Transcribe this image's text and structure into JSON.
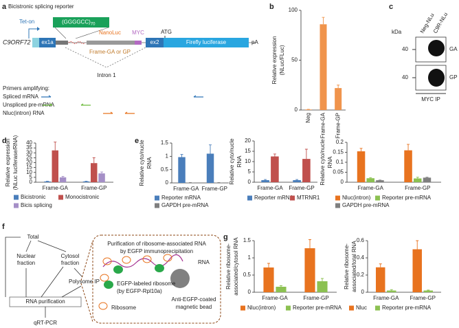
{
  "panel_labels": [
    "a",
    "b",
    "c",
    "d",
    "e",
    "f",
    "g"
  ],
  "panel_a": {
    "title": "Bicistronic splicing reporter",
    "repeat": "(GGGGCC)",
    "repeat_count": "70",
    "tet_on": "Tet-on",
    "gene": "C9ORF72",
    "exon1": "ex1a",
    "nanoluc": "NanoLuc",
    "myc": "MYC",
    "atg": "ATG",
    "frame": "Frame-GA or GP",
    "exon2": "ex2",
    "firefly": "Firefly luciferase",
    "pa": "pA",
    "intron": "Intron 1",
    "primers_title": "Primers amplifying:",
    "primers": [
      "Spliced mRNA",
      "Unspliced pre-mRNA",
      "Nluc(intron) RNA"
    ]
  },
  "panel_c": {
    "kda": "kDa",
    "markers": [
      "40",
      "40"
    ],
    "lanes": [
      "Neg-NLu",
      "C9R-NLu"
    ],
    "bands": [
      "GA",
      "GP"
    ],
    "footer": "MYC IP"
  },
  "panel_f": {
    "total": "Total",
    "nuclear": [
      "Nuclear",
      "fraction"
    ],
    "cytosol": [
      "Cytosol",
      "fraction"
    ],
    "polysome": "Polysome IP",
    "purification": "RNA purification",
    "qpcr": "qRT-PCR",
    "box_title": [
      "Purification of ribosome-associated RNA",
      "by EGFP immunoprecipitation"
    ],
    "rna": "RNA",
    "egfp": [
      "EGFP-labeled ribosome",
      "(by EGFP-Rpl10a)"
    ],
    "ribosome": "Ribosome",
    "bead": [
      "Anti-EGFP-coated",
      "magnetic bead"
    ]
  },
  "chart_data": [
    {
      "type": "bar",
      "ylabel": [
        "Relative expression",
        "(NLuc/FLuc)"
      ],
      "categories": [
        "Neg",
        "Frame-GA",
        "Frame-GP"
      ],
      "values": [
        0.5,
        86,
        22
      ],
      "errors": [
        0.2,
        7,
        3
      ],
      "color": "#f0944c",
      "ylim": [
        0,
        100
      ],
      "yticks": [
        0,
        50,
        100
      ]
    },
    {
      "type": "bar",
      "ylabel": [
        "Relative expression",
        "(NLuc luciferase/RNA)"
      ],
      "categories": [
        "Frame-GA",
        "Frame-GP"
      ],
      "ylim": [
        0,
        40
      ],
      "yticks": [
        0,
        5,
        10,
        15,
        20,
        25,
        30,
        35,
        40
      ],
      "series": [
        {
          "name": "Bicistronic",
          "color": "#4a7ebb",
          "values": [
            0.8,
            0.8
          ],
          "errors": [
            0.3,
            0.3
          ]
        },
        {
          "name": "Monocistronic",
          "color": "#c0504d",
          "values": [
            32.5,
            19.5
          ],
          "errors": [
            8.5,
            5.5
          ]
        },
        {
          "name": "Bicis splicing",
          "color": "#a58fc7",
          "values": [
            5,
            9
          ],
          "errors": [
            1,
            1.5
          ]
        }
      ]
    },
    {
      "type": "bar",
      "ylabel": [
        "Relative cyto/nucle",
        "RNA"
      ],
      "categories": [
        "Frame-GA",
        "Frame-GP"
      ],
      "ylim": [
        0,
        1.5
      ],
      "yticks": [
        0,
        0.5,
        1,
        1.5
      ],
      "series": [
        {
          "name": "Reporter mRNA",
          "color": "#4a7ebb",
          "values": [
            0.97,
            1.1
          ],
          "errors": [
            0.1,
            0.33
          ]
        },
        {
          "name": "GAPDH pre-mRNA",
          "color": "#7f7f7f",
          "values": [
            0.01,
            0.01
          ],
          "errors": [
            0.005,
            0.005
          ]
        }
      ]
    },
    {
      "type": "bar",
      "ylabel": [
        "Relative cyto/nucle",
        "RNA"
      ],
      "categories": [
        "Frame-GA",
        "Frame-GP"
      ],
      "ylim": [
        0,
        20
      ],
      "yticks": [
        0,
        5,
        10,
        15,
        20
      ],
      "series": [
        {
          "name": "Reporter mRNA",
          "color": "#4a7ebb",
          "values": [
            1,
            1
          ],
          "errors": [
            0.3,
            0.3
          ]
        },
        {
          "name": "MTRNR1",
          "color": "#c0504d",
          "values": [
            12.5,
            11.3
          ],
          "errors": [
            1.2,
            4.7
          ]
        }
      ]
    },
    {
      "type": "bar",
      "ylabel": [
        "Relative cyto/nucle",
        "RNA"
      ],
      "categories": [
        "Frame-GA",
        "Frame-GP"
      ],
      "ylim": [
        0,
        0.2
      ],
      "yticks": [
        0,
        0.05,
        0.1,
        0.15,
        0.2
      ],
      "series": [
        {
          "name": "Nluc(intron)",
          "color": "#e8731f",
          "values": [
            0.155,
            0.16
          ],
          "errors": [
            0.015,
            0.03
          ]
        },
        {
          "name": "Reporter pre-mRNA",
          "color": "#8cc152",
          "values": [
            0.02,
            0.019
          ],
          "errors": [
            0.003,
            0.006
          ]
        },
        {
          "name": "GAPDH pre-mRNA",
          "color": "#7f7f7f",
          "values": [
            0.01,
            0.023
          ],
          "errors": [
            0.001,
            0.002
          ]
        }
      ]
    },
    {
      "type": "bar",
      "ylabel": [
        "Relative ribosome-",
        "associated/cytosol RNA"
      ],
      "categories": [
        "Frame-GA",
        "Frame-GP"
      ],
      "ylim": [
        0,
        1.5
      ],
      "yticks": [
        0,
        0.5,
        1,
        1.5
      ],
      "series": [
        {
          "name": "Nluc(intron)",
          "color": "#e8731f",
          "values": [
            0.72,
            1.28
          ],
          "errors": [
            0.12,
            0.25
          ]
        },
        {
          "name": "Reporter pre-mRNA",
          "color": "#8cc152",
          "values": [
            0.16,
            0.32
          ],
          "errors": [
            0.03,
            0.08
          ]
        }
      ]
    },
    {
      "type": "bar",
      "ylabel": [
        "Relative ribosome-",
        "associated/total RNA"
      ],
      "categories": [
        "Frame-GA",
        "Frame-GP"
      ],
      "ylim": [
        0,
        0.6
      ],
      "yticks": [
        0,
        0.2,
        0.4,
        0.6
      ],
      "series": [
        {
          "name": "Nluc",
          "color": "#e8731f",
          "values": [
            0.29,
            0.5
          ],
          "errors": [
            0.04,
            0.1
          ]
        },
        {
          "name": "Reporter pre-mRNA",
          "color": "#8cc152",
          "values": [
            0.02,
            0.02
          ],
          "errors": [
            0.01,
            0.005
          ]
        }
      ]
    }
  ]
}
